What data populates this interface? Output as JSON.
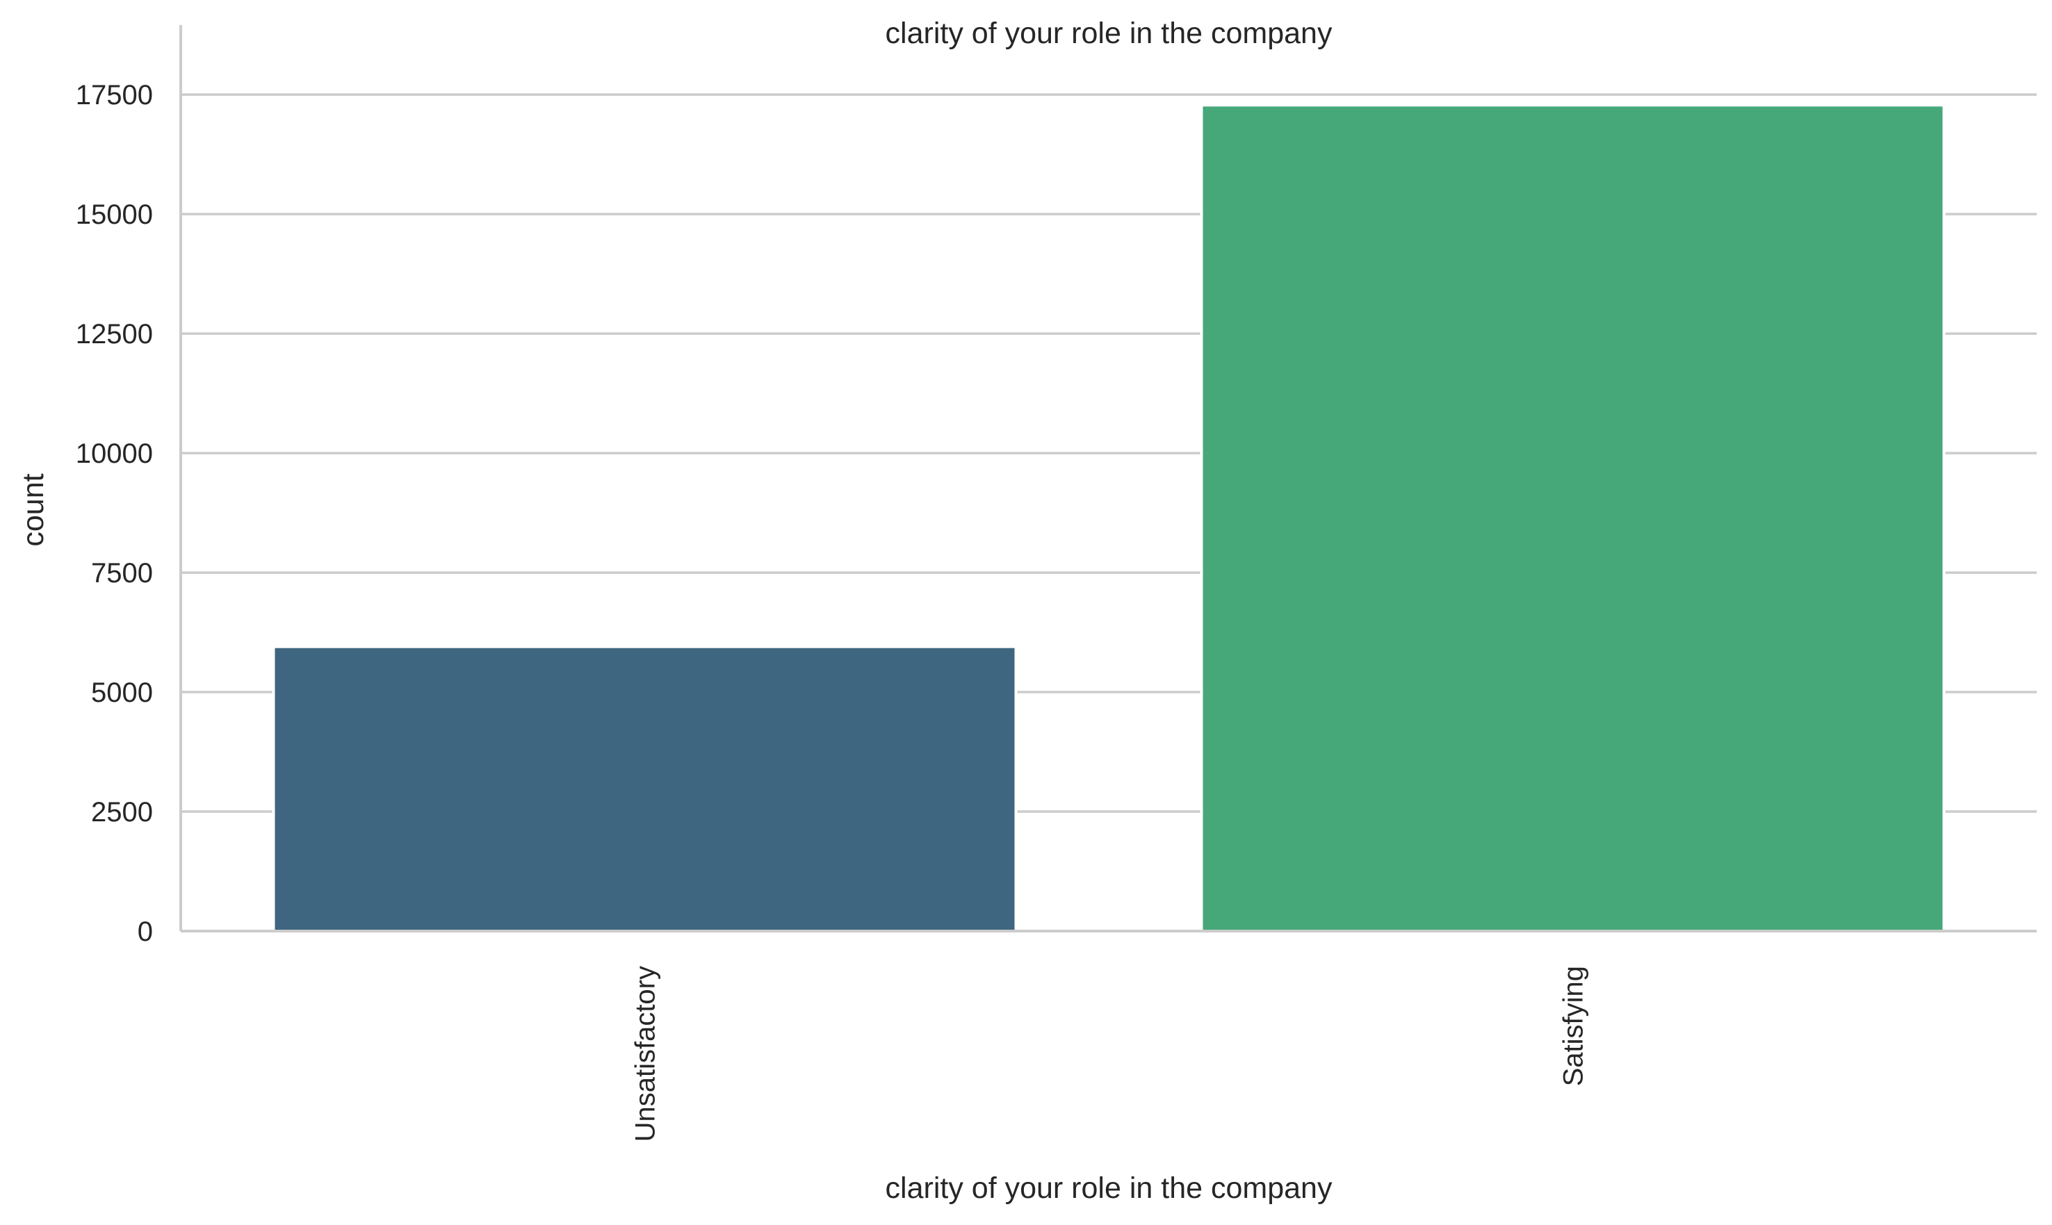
{
  "chart_data": {
    "type": "bar",
    "title": "clarity of your role in the company",
    "xlabel": "clarity of your role in the company",
    "ylabel": "count",
    "categories": [
      "Unsatisfactory",
      "Satisfying"
    ],
    "values": [
      5950,
      17280
    ],
    "colors": [
      "#3f6680",
      "#46a879"
    ],
    "ylim": [
      0,
      18200
    ],
    "yticks": [
      0,
      2500,
      5000,
      7500,
      10000,
      12500,
      15000,
      17500
    ],
    "grid": true,
    "legend": "none"
  }
}
